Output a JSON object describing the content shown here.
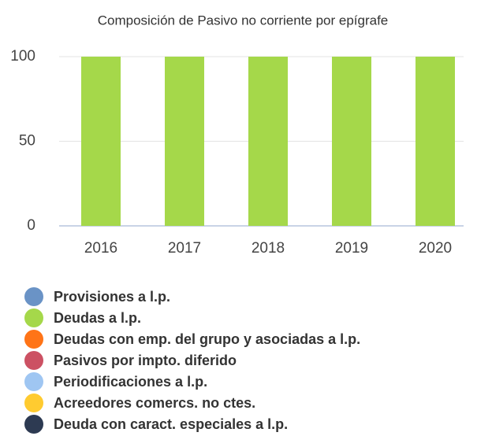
{
  "chart_data": {
    "type": "stacked_bar",
    "title": "Composición de Pasivo no corriente por epígrafe",
    "categories": [
      "2016",
      "2017",
      "2018",
      "2019",
      "2020"
    ],
    "series": [
      {
        "name": "Provisiones a l.p.",
        "color": "#6a93c6",
        "values": [
          0,
          0,
          0,
          0,
          0
        ]
      },
      {
        "name": "Deudas a l.p.",
        "color": "#a5d84a",
        "values": [
          100,
          100,
          100,
          100,
          100
        ]
      },
      {
        "name": "Deudas con emp. del grupo y asociadas a l.p.",
        "color": "#ff7417",
        "values": [
          0,
          0,
          0,
          0,
          0
        ]
      },
      {
        "name": "Pasivos por impto. diferido",
        "color": "#cc5163",
        "values": [
          0,
          0,
          0,
          0,
          0
        ]
      },
      {
        "name": "Periodificaciones a l.p.",
        "color": "#9fc6f2",
        "values": [
          0,
          0,
          0,
          0,
          0
        ]
      },
      {
        "name": "Acreedores comercs. no ctes.",
        "color": "#ffcb30",
        "values": [
          0,
          0,
          0,
          0,
          0
        ]
      },
      {
        "name": "Deuda con caract. especiales a l.p.",
        "color": "#2d3a52",
        "values": [
          0,
          0,
          0,
          0,
          0
        ]
      }
    ],
    "ylim": [
      0,
      100
    ],
    "yticks": [
      0,
      50,
      100
    ],
    "grid": true
  }
}
